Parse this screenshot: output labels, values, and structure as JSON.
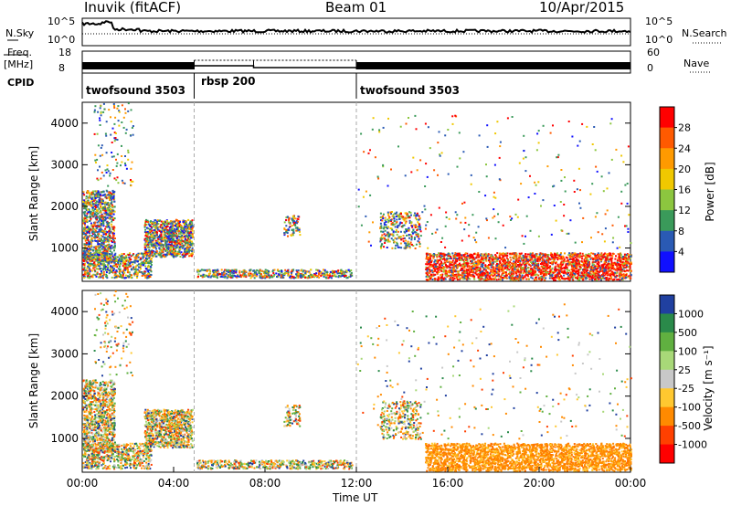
{
  "header": {
    "station": "Inuvik (fitACF)",
    "beam": "Beam 01",
    "date": "10/Apr/2015"
  },
  "left_labels": {
    "nsky": "N.Sky",
    "freq_top": "Freq.",
    "freq_unit": "[MHz]",
    "cpid": "CPID"
  },
  "right_labels": {
    "nsearch": "N.Search",
    "nave": "Nave"
  },
  "nsky_axis": {
    "top": "10^5",
    "bottom": "10^0"
  },
  "freq_axis": {
    "top": "18",
    "bottom": "8"
  },
  "nave_axis": {
    "top": "60",
    "bottom": "0"
  },
  "cpid_segments": [
    {
      "label": "twofsound 3503",
      "start_h": 0,
      "end_h": 4.9
    },
    {
      "label": "rbsp 200",
      "start_h": 4.9,
      "end_h": 12.0
    },
    {
      "label": "twofsound 3503",
      "start_h": 12.0,
      "end_h": 24.0
    }
  ],
  "chart_data": [
    {
      "type": "heatmap",
      "name": "Power",
      "ylabel": "Slant Range [km]",
      "yticks": [
        1000,
        2000,
        3000,
        4000
      ],
      "ylim": [
        200,
        4500
      ],
      "xlim_hours": [
        0,
        24
      ],
      "colorbar_label": "Power [dB]",
      "colorbar_ticks": [
        "28",
        "24",
        "20",
        "16",
        "12",
        "8",
        "4"
      ],
      "colorbar_colors": [
        "#ff0000",
        "#ff5a00",
        "#ff9a00",
        "#f0c800",
        "#8cc63f",
        "#3a9a5a",
        "#2a5ab4",
        "#1010ff"
      ]
    },
    {
      "type": "heatmap",
      "name": "Velocity",
      "ylabel": "Slant Range [km]",
      "yticks": [
        1000,
        2000,
        3000,
        4000
      ],
      "ylim": [
        200,
        4500
      ],
      "xlim_hours": [
        0,
        24
      ],
      "colorbar_label": "Velocity [m s⁻¹]",
      "colorbar_ticks": [
        "1000",
        "500",
        "100",
        "25",
        "-25",
        "-100",
        "-500",
        "-1000"
      ],
      "colorbar_colors": [
        "#2040a0",
        "#2a8a4a",
        "#60b040",
        "#a8d878",
        "#c8c8c8",
        "#ffc830",
        "#ff8a00",
        "#ff4000",
        "#ff0000"
      ]
    }
  ],
  "xaxis": {
    "ticks": [
      "00:00",
      "04:00",
      "08:00",
      "12:00",
      "16:00",
      "20:00",
      "00:00"
    ],
    "label": "Time UT"
  }
}
